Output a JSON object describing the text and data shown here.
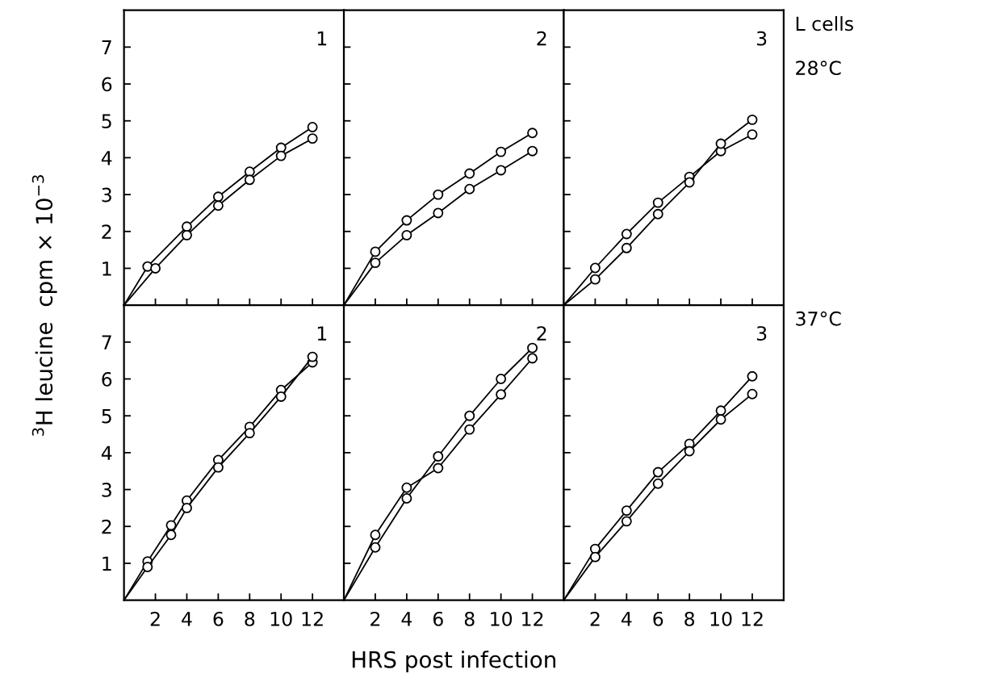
{
  "chart_data": [
    {
      "type": "line",
      "ylabel": "$^{3}$H leucine  cpm × 10$^{−3}$",
      "xlim": [
        0,
        14
      ],
      "ylim": [
        0,
        8
      ],
      "xticks": [
        2,
        4,
        6,
        8,
        10,
        12
      ],
      "yticks": [
        1,
        2,
        3,
        4,
        5,
        6,
        7
      ],
      "tick_labels": "y",
      "marker": "circle",
      "annotations": [
        "1"
      ],
      "series": [
        {
          "color": "#000000",
          "x": [
            0,
            1.5,
            4,
            6,
            8,
            10,
            12
          ],
          "values": [
            0,
            1.05,
            2.13,
            2.94,
            3.62,
            4.27,
            4.83
          ]
        },
        {
          "color": "#000000",
          "x": [
            0,
            2,
            4,
            6,
            8,
            10,
            12
          ],
          "values": [
            0,
            1.0,
            1.9,
            2.7,
            3.4,
            4.05,
            4.52
          ]
        }
      ]
    },
    {
      "type": "line",
      "xlim": [
        0,
        14
      ],
      "ylim": [
        0,
        8
      ],
      "xticks": [
        2,
        4,
        6,
        8,
        10,
        12
      ],
      "yticks": [
        1,
        2,
        3,
        4,
        5,
        6,
        7
      ],
      "tick_labels": false,
      "marker": "circle",
      "annotations": [
        "2"
      ],
      "series": [
        {
          "color": "#000000",
          "x": [
            0,
            2,
            4,
            6,
            8,
            10,
            12
          ],
          "values": [
            0,
            1.45,
            2.3,
            3.0,
            3.57,
            4.16,
            4.67
          ]
        },
        {
          "color": "#000000",
          "x": [
            0,
            2,
            4,
            6,
            8,
            10,
            12
          ],
          "values": [
            0,
            1.15,
            1.9,
            2.5,
            3.15,
            3.66,
            4.18
          ]
        }
      ]
    },
    {
      "type": "line",
      "xlim": [
        0,
        14
      ],
      "ylim": [
        0,
        8
      ],
      "xticks": [
        2,
        4,
        6,
        8,
        10,
        12
      ],
      "yticks": [
        1,
        2,
        3,
        4,
        5,
        6,
        7
      ],
      "tick_labels": false,
      "marker": "circle",
      "annotations": [
        "3",
        "L cells",
        "28°C"
      ],
      "series": [
        {
          "color": "#000000",
          "x": [
            0,
            2,
            4,
            6,
            8,
            10,
            12
          ],
          "values": [
            0,
            1.01,
            1.93,
            2.78,
            3.48,
            4.18,
            4.63
          ]
        },
        {
          "color": "#000000",
          "x": [
            0,
            2,
            4,
            6,
            8,
            10,
            12
          ],
          "values": [
            0,
            0.7,
            1.55,
            2.47,
            3.33,
            4.38,
            5.03
          ]
        }
      ]
    },
    {
      "type": "line",
      "xlim": [
        0,
        14
      ],
      "ylim": [
        0,
        8
      ],
      "xticks": [
        2,
        4,
        6,
        8,
        10,
        12
      ],
      "yticks": [
        1,
        2,
        3,
        4,
        5,
        6,
        7
      ],
      "marker": "circle",
      "annotations": [
        "1"
      ],
      "series": [
        {
          "color": "#000000",
          "x": [
            0,
            1.5,
            3,
            4,
            6,
            8,
            10,
            12
          ],
          "values": [
            0,
            1.05,
            2.03,
            2.7,
            3.8,
            4.7,
            5.7,
            6.45
          ]
        },
        {
          "color": "#000000",
          "x": [
            0,
            1.5,
            3,
            4,
            6,
            8,
            10,
            12
          ],
          "values": [
            0,
            0.9,
            1.77,
            2.5,
            3.6,
            4.53,
            5.52,
            6.6
          ]
        }
      ]
    },
    {
      "type": "line",
      "xlabel": "HRS post infection",
      "xlim": [
        0,
        14
      ],
      "ylim": [
        0,
        8
      ],
      "xticks": [
        2,
        4,
        6,
        8,
        10,
        12
      ],
      "yticks": [
        1,
        2,
        3,
        4,
        5,
        6,
        7
      ],
      "tick_labels": "x",
      "marker": "circle",
      "annotations": [
        "2"
      ],
      "series": [
        {
          "color": "#000000",
          "x": [
            0,
            2,
            4,
            6,
            8,
            10,
            12
          ],
          "values": [
            0,
            1.77,
            3.05,
            3.58,
            4.63,
            5.58,
            6.56
          ]
        },
        {
          "color": "#000000",
          "x": [
            0,
            2,
            4,
            6,
            8,
            10,
            12
          ],
          "values": [
            0,
            1.43,
            2.76,
            3.9,
            5.0,
            6.0,
            6.84
          ]
        }
      ]
    },
    {
      "type": "line",
      "xlim": [
        0,
        14
      ],
      "ylim": [
        0,
        8
      ],
      "xticks": [
        2,
        4,
        6,
        8,
        10,
        12
      ],
      "yticks": [
        1,
        2,
        3,
        4,
        5,
        6,
        7
      ],
      "tick_labels": "x",
      "marker": "circle",
      "annotations": [
        "3",
        "37°C"
      ],
      "series": [
        {
          "color": "#000000",
          "x": [
            0,
            2,
            4,
            6,
            8,
            10,
            12
          ],
          "values": [
            0,
            1.39,
            2.43,
            3.47,
            4.24,
            5.14,
            6.07
          ]
        },
        {
          "color": "#000000",
          "x": [
            0,
            2,
            4,
            6,
            8,
            10,
            12
          ],
          "values": [
            0,
            1.17,
            2.14,
            3.16,
            4.04,
            4.9,
            5.59
          ]
        }
      ]
    }
  ]
}
